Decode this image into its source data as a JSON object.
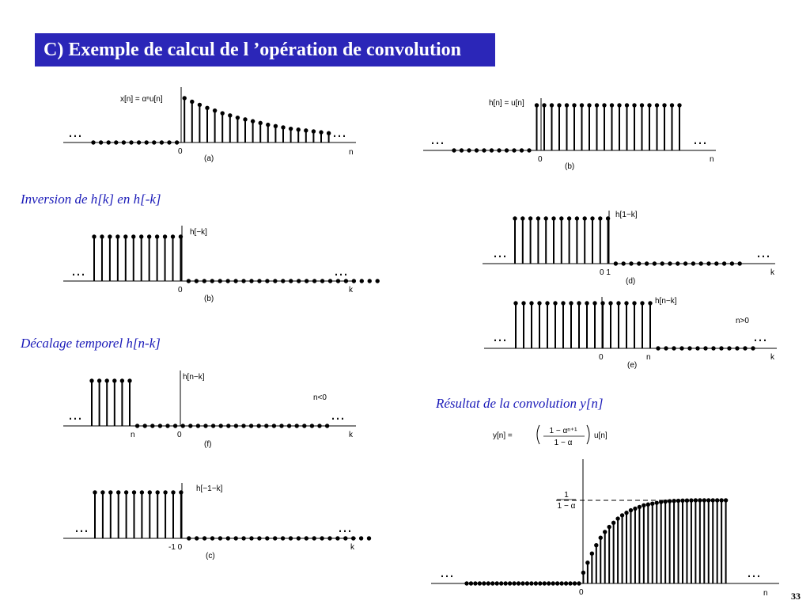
{
  "slide": {
    "title": "C) Exemple de calcul de l ’opération de convolution",
    "page_number": "33",
    "captions": {
      "inversion": "Inversion de h[k] en h[-k]",
      "decalage": "Décalage temporel  h[n-k]",
      "resultat": "Résultat de la convolution y[n]"
    }
  },
  "ellipsis": "…",
  "panels": {
    "xa": {
      "expr": "x[n] = αⁿu[n]",
      "sub": "(a)",
      "zero": "0",
      "axis": "n",
      "samples": [
        0,
        0,
        0,
        0,
        0,
        0,
        0,
        0,
        0,
        0,
        0,
        0,
        1.0,
        0.92,
        0.85,
        0.78,
        0.72,
        0.66,
        0.61,
        0.56,
        0.52,
        0.48,
        0.44,
        0.4,
        0.37,
        0.34,
        0.31,
        0.29,
        0.27,
        0.25,
        0.23,
        0.21
      ]
    },
    "hb": {
      "expr": "h[n] = u[n]",
      "sub": "(b)",
      "zero": "0",
      "axis": "n",
      "samples": [
        0,
        0,
        0,
        0,
        0,
        0,
        0,
        0,
        0,
        0,
        0,
        1,
        1,
        1,
        1,
        1,
        1,
        1,
        1,
        1,
        1,
        1,
        1,
        1,
        1,
        1,
        1,
        1,
        1,
        1,
        1
      ]
    },
    "hmk": {
      "expr": "h[−k]",
      "sub": "(b)",
      "zero": "0",
      "axis": "k",
      "samples": [
        1,
        1,
        1,
        1,
        1,
        1,
        1,
        1,
        1,
        1,
        1,
        1,
        0,
        0,
        0,
        0,
        0,
        0,
        0,
        0,
        0,
        0,
        0,
        0,
        0,
        0,
        0,
        0,
        0,
        0,
        0,
        0,
        0,
        0,
        0,
        0,
        0
      ]
    },
    "h1k": {
      "expr": "h[1−k]",
      "sub": "(d)",
      "zero": "0 1",
      "axis": "k",
      "samples": [
        1,
        1,
        1,
        1,
        1,
        1,
        1,
        1,
        1,
        1,
        1,
        1,
        1,
        0,
        0,
        0,
        0,
        0,
        0,
        0,
        0,
        0,
        0,
        0,
        0,
        0,
        0,
        0,
        0,
        0
      ]
    },
    "hnk_pos": {
      "expr": "h[n−k]",
      "sub": "(e)",
      "zero": "0",
      "n_label": "n",
      "axis": "k",
      "cond": "n>0",
      "samples": [
        1,
        1,
        1,
        1,
        1,
        1,
        1,
        1,
        1,
        1,
        1,
        1,
        1,
        1,
        1,
        1,
        1,
        1,
        0,
        0,
        0,
        0,
        0,
        0,
        0,
        0,
        0,
        0,
        0,
        0,
        0
      ]
    },
    "hnk_neg": {
      "expr": "h[n−k]",
      "sub": "(f)",
      "zero": "0",
      "n_label": "n",
      "axis": "k",
      "cond": "n<0",
      "samples": [
        1,
        1,
        1,
        1,
        1,
        1,
        0,
        0,
        0,
        0,
        0,
        0,
        0,
        0,
        0,
        0,
        0,
        0,
        0,
        0,
        0,
        0,
        0,
        0,
        0,
        0,
        0,
        0,
        0,
        0,
        0,
        0
      ]
    },
    "hm1k": {
      "expr": "h[−1−k]",
      "sub": "(c)",
      "zero": "-1 0",
      "axis": "k",
      "samples": [
        1,
        1,
        1,
        1,
        1,
        1,
        1,
        1,
        1,
        1,
        1,
        1,
        0,
        0,
        0,
        0,
        0,
        0,
        0,
        0,
        0,
        0,
        0,
        0,
        0,
        0,
        0,
        0,
        0,
        0,
        0,
        0,
        0,
        0,
        0,
        0
      ]
    },
    "y": {
      "expr_lhs": "y[n] =",
      "frac_num": "1 − αⁿ⁺¹",
      "frac_den": "1 − α",
      "expr_rhs": "u[n]",
      "asym_num": "1",
      "asym_den": "1 − α",
      "zero": "0",
      "axis": "n",
      "samples": [
        0,
        0,
        0,
        0,
        0,
        0,
        0,
        0,
        0,
        0,
        0,
        0,
        0,
        0,
        0,
        0,
        0,
        0,
        0,
        0,
        0,
        0,
        0,
        0,
        0,
        0,
        0,
        0.13,
        0.25,
        0.36,
        0.46,
        0.55,
        0.62,
        0.68,
        0.73,
        0.78,
        0.82,
        0.85,
        0.88,
        0.9,
        0.92,
        0.94,
        0.95,
        0.96,
        0.97,
        0.98,
        0.985,
        0.99,
        0.993,
        0.995,
        0.997,
        0.998,
        0.999,
        1,
        1,
        1,
        1,
        1,
        1,
        1,
        1
      ]
    }
  }
}
